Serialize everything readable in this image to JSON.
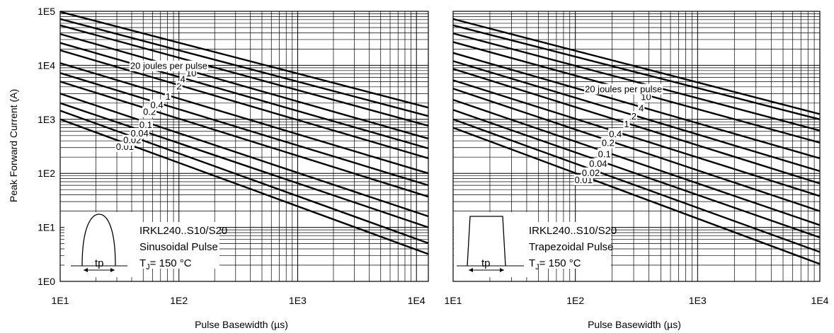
{
  "chart_data": [
    {
      "type": "line",
      "title": "",
      "xlabel": "Pulse Basewidth (µs)",
      "ylabel": "Peak Forward Current (A)",
      "x_scale": "log",
      "y_scale": "log",
      "xlim": [
        10,
        12600
      ],
      "ylim": [
        1,
        100000
      ],
      "grid": true,
      "x_ticks": [
        "1E1",
        "1E2",
        "1E3",
        "1E4"
      ],
      "y_ticks": [
        "1E0",
        "1E1",
        "1E2",
        "1E3",
        "1E4",
        "1E5"
      ],
      "legend_annotation": {
        "device": "IRKL240..S10/S20",
        "waveform": "Sinusoidal Pulse",
        "tj_prefix": "T",
        "tj_sub": "J",
        "tj_value": "= 150 °C",
        "pulse_label": "tp"
      },
      "series": [
        {
          "name": "0.01",
          "x": [
            10,
            12600
          ],
          "y": [
            1000,
            3.2
          ]
        },
        {
          "name": "0.02",
          "x": [
            10,
            12600
          ],
          "y": [
            1450,
            5.1
          ]
        },
        {
          "name": "0.04",
          "x": [
            10,
            12600
          ],
          "y": [
            2000,
            10
          ]
        },
        {
          "name": "0.1",
          "x": [
            10,
            12600
          ],
          "y": [
            3000,
            16
          ]
        },
        {
          "name": "0.2",
          "x": [
            10,
            12600
          ],
          "y": [
            5000,
            37
          ]
        },
        {
          "name": "0.4",
          "x": [
            10,
            12600
          ],
          "y": [
            7200,
            60
          ]
        },
        {
          "name": "1",
          "x": [
            10,
            12600
          ],
          "y": [
            11000,
            100
          ]
        },
        {
          "name": "2",
          "x": [
            10,
            12600
          ],
          "y": [
            19000,
            190
          ]
        },
        {
          "name": "4",
          "x": [
            10,
            12600
          ],
          "y": [
            26000,
            290
          ]
        },
        {
          "name": "10",
          "x": [
            10,
            12600
          ],
          "y": [
            38000,
            440
          ]
        },
        {
          "name": "20 joules per pulse",
          "x": [
            10,
            12600
          ],
          "y": [
            55000,
            760
          ]
        },
        {
          "name": "",
          "x": [
            10,
            12600
          ],
          "y": [
            72000,
            1150
          ]
        },
        {
          "name": "",
          "x": [
            10,
            12600
          ],
          "y": [
            98000,
            1650
          ]
        }
      ]
    },
    {
      "type": "line",
      "title": "",
      "xlabel": "Pulse Basewidth (µs)",
      "ylabel": "",
      "x_scale": "log",
      "y_scale": "log",
      "xlim": [
        10,
        10000
      ],
      "ylim": [
        1,
        100000
      ],
      "grid": true,
      "x_ticks": [
        "1E1",
        "1E2",
        "1E3",
        "1E4"
      ],
      "legend_annotation": {
        "device": "IRKL240..S10/S20",
        "waveform": "Trapezoidal Pulse",
        "tj_prefix": "T",
        "tj_sub": "J",
        "tj_value": "= 150 °C",
        "pulse_label": "tp"
      },
      "series": [
        {
          "name": "0.01",
          "x": [
            10,
            10000
          ],
          "y": [
            700,
            2.1
          ]
        },
        {
          "name": "0.02",
          "x": [
            10,
            10000
          ],
          "y": [
            1000,
            3.5
          ]
        },
        {
          "name": "0.04",
          "x": [
            10,
            10000
          ],
          "y": [
            1500,
            6.5
          ]
        },
        {
          "name": "0.1",
          "x": [
            10,
            10000
          ],
          "y": [
            2300,
            11
          ]
        },
        {
          "name": "0.2",
          "x": [
            10,
            10000
          ],
          "y": [
            3700,
            20
          ]
        },
        {
          "name": "0.4",
          "x": [
            10,
            10000
          ],
          "y": [
            5300,
            38
          ]
        },
        {
          "name": "1",
          "x": [
            10,
            10000
          ],
          "y": [
            8600,
            65
          ]
        },
        {
          "name": "2",
          "x": [
            10,
            10000
          ],
          "y": [
            12000,
            110
          ]
        },
        {
          "name": "4",
          "x": [
            10,
            10000
          ],
          "y": [
            17000,
            190
          ]
        },
        {
          "name": "10",
          "x": [
            10,
            10000
          ],
          "y": [
            27000,
            370
          ]
        },
        {
          "name": "20 joules per pulse",
          "x": [
            10,
            10000
          ],
          "y": [
            39000,
            620
          ]
        },
        {
          "name": "",
          "x": [
            10,
            10000
          ],
          "y": [
            55000,
            1000
          ]
        },
        {
          "name": "",
          "x": [
            10,
            10000
          ],
          "y": [
            72000,
            1250
          ]
        }
      ]
    }
  ]
}
